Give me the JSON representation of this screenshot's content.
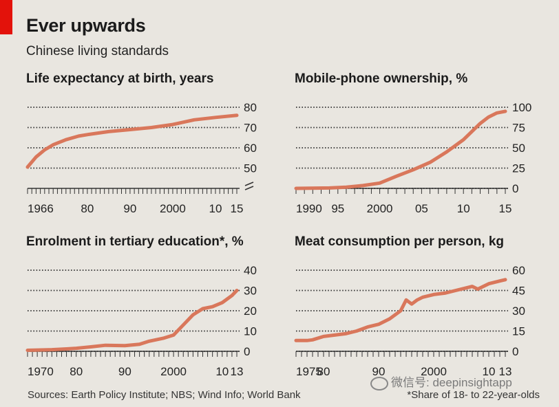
{
  "header": {
    "title": "Ever upwards",
    "subtitle": "Chinese living standards"
  },
  "footer": {
    "source": "Sources: Earth Policy Institute; NBS; Wind Info; World Bank",
    "footnote": "*Share of 18- to 22-year-olds",
    "watermark": "微信号: deepinsightapp"
  },
  "colors": {
    "line": "#d9775b",
    "grid": "#333333",
    "accent": "#e3120b"
  },
  "chart_data": [
    {
      "id": "life",
      "type": "line",
      "title": "Life expectancy at birth, years",
      "xlim": [
        1966,
        2015
      ],
      "ylim": [
        40,
        80
      ],
      "axis_break": true,
      "x_ticks": [
        1966,
        1980,
        1990,
        2000,
        2010,
        2015
      ],
      "x_tick_labels": [
        "1966",
        "80",
        "90",
        "2000",
        "10",
        "15"
      ],
      "y_ticks": [
        50,
        60,
        70,
        80
      ],
      "y_tick_labels": [
        "50",
        "60",
        "70",
        "80"
      ],
      "x": [
        1966,
        1968,
        1970,
        1972,
        1975,
        1978,
        1980,
        1985,
        1990,
        1995,
        2000,
        2005,
        2010,
        2015
      ],
      "y": [
        50.5,
        55.5,
        59.0,
        61.5,
        64.0,
        65.8,
        66.5,
        68.0,
        69.0,
        70.0,
        71.5,
        73.8,
        75.0,
        76.0
      ]
    },
    {
      "id": "mobile",
      "type": "line",
      "title": "Mobile-phone ownership, %",
      "xlim": [
        1990,
        2015
      ],
      "ylim": [
        0,
        100
      ],
      "x_ticks": [
        1990,
        1995,
        2000,
        2005,
        2010,
        2015
      ],
      "x_tick_labels": [
        "1990",
        "95",
        "2000",
        "05",
        "10",
        "15"
      ],
      "y_ticks": [
        0,
        25,
        50,
        75,
        100
      ],
      "y_tick_labels": [
        "0",
        "25",
        "50",
        "75",
        "100"
      ],
      "x": [
        1990,
        1994,
        1996,
        1998,
        2000,
        2002,
        2004,
        2006,
        2008,
        2010,
        2012,
        2013,
        2014,
        2015
      ],
      "y": [
        0,
        0.5,
        1.5,
        3.5,
        6.5,
        15,
        23,
        32,
        45,
        60,
        80,
        88,
        93,
        95
      ]
    },
    {
      "id": "enrolment",
      "type": "line",
      "title": "Enrolment in tertiary education*, %",
      "xlim": [
        1970,
        2013
      ],
      "ylim": [
        0,
        40
      ],
      "x_ticks": [
        1970,
        1980,
        1990,
        2000,
        2010,
        2013
      ],
      "x_tick_labels": [
        "1970",
        "80",
        "90",
        "2000",
        "10",
        "13"
      ],
      "y_ticks": [
        0,
        10,
        20,
        30,
        40
      ],
      "y_tick_labels": [
        "0",
        "10",
        "20",
        "30",
        "40"
      ],
      "x": [
        1970,
        1975,
        1978,
        1980,
        1983,
        1986,
        1990,
        1993,
        1995,
        1998,
        2000,
        2002,
        2004,
        2006,
        2008,
        2010,
        2012,
        2013
      ],
      "y": [
        0.5,
        0.8,
        1.2,
        1.5,
        2.2,
        3.0,
        2.8,
        3.5,
        5.0,
        6.5,
        8.0,
        13.0,
        18.0,
        21.0,
        22.0,
        24.0,
        27.5,
        30.0
      ]
    },
    {
      "id": "meat",
      "type": "line",
      "title": "Meat consumption per person, kg",
      "xlim": [
        1975,
        2013
      ],
      "ylim": [
        0,
        60
      ],
      "x_ticks": [
        1975,
        1980,
        1990,
        2000,
        2010,
        2013
      ],
      "x_tick_labels": [
        "1975",
        "80",
        "90",
        "2000",
        "10",
        "13"
      ],
      "y_ticks": [
        0,
        15,
        30,
        45,
        60
      ],
      "y_tick_labels": [
        "0",
        "15",
        "30",
        "45",
        "60"
      ],
      "x": [
        1975,
        1977,
        1978,
        1980,
        1982,
        1984,
        1986,
        1988,
        1990,
        1992,
        1994,
        1995,
        1996,
        1997,
        1998,
        2000,
        2002,
        2004,
        2006,
        2007,
        2008,
        2010,
        2011,
        2012,
        2013
      ],
      "y": [
        8,
        8,
        8.5,
        11,
        12,
        13,
        15,
        18,
        20,
        24,
        30,
        38,
        35,
        38,
        40,
        42,
        43,
        45,
        47,
        48,
        46,
        50,
        51,
        52,
        53
      ]
    }
  ]
}
